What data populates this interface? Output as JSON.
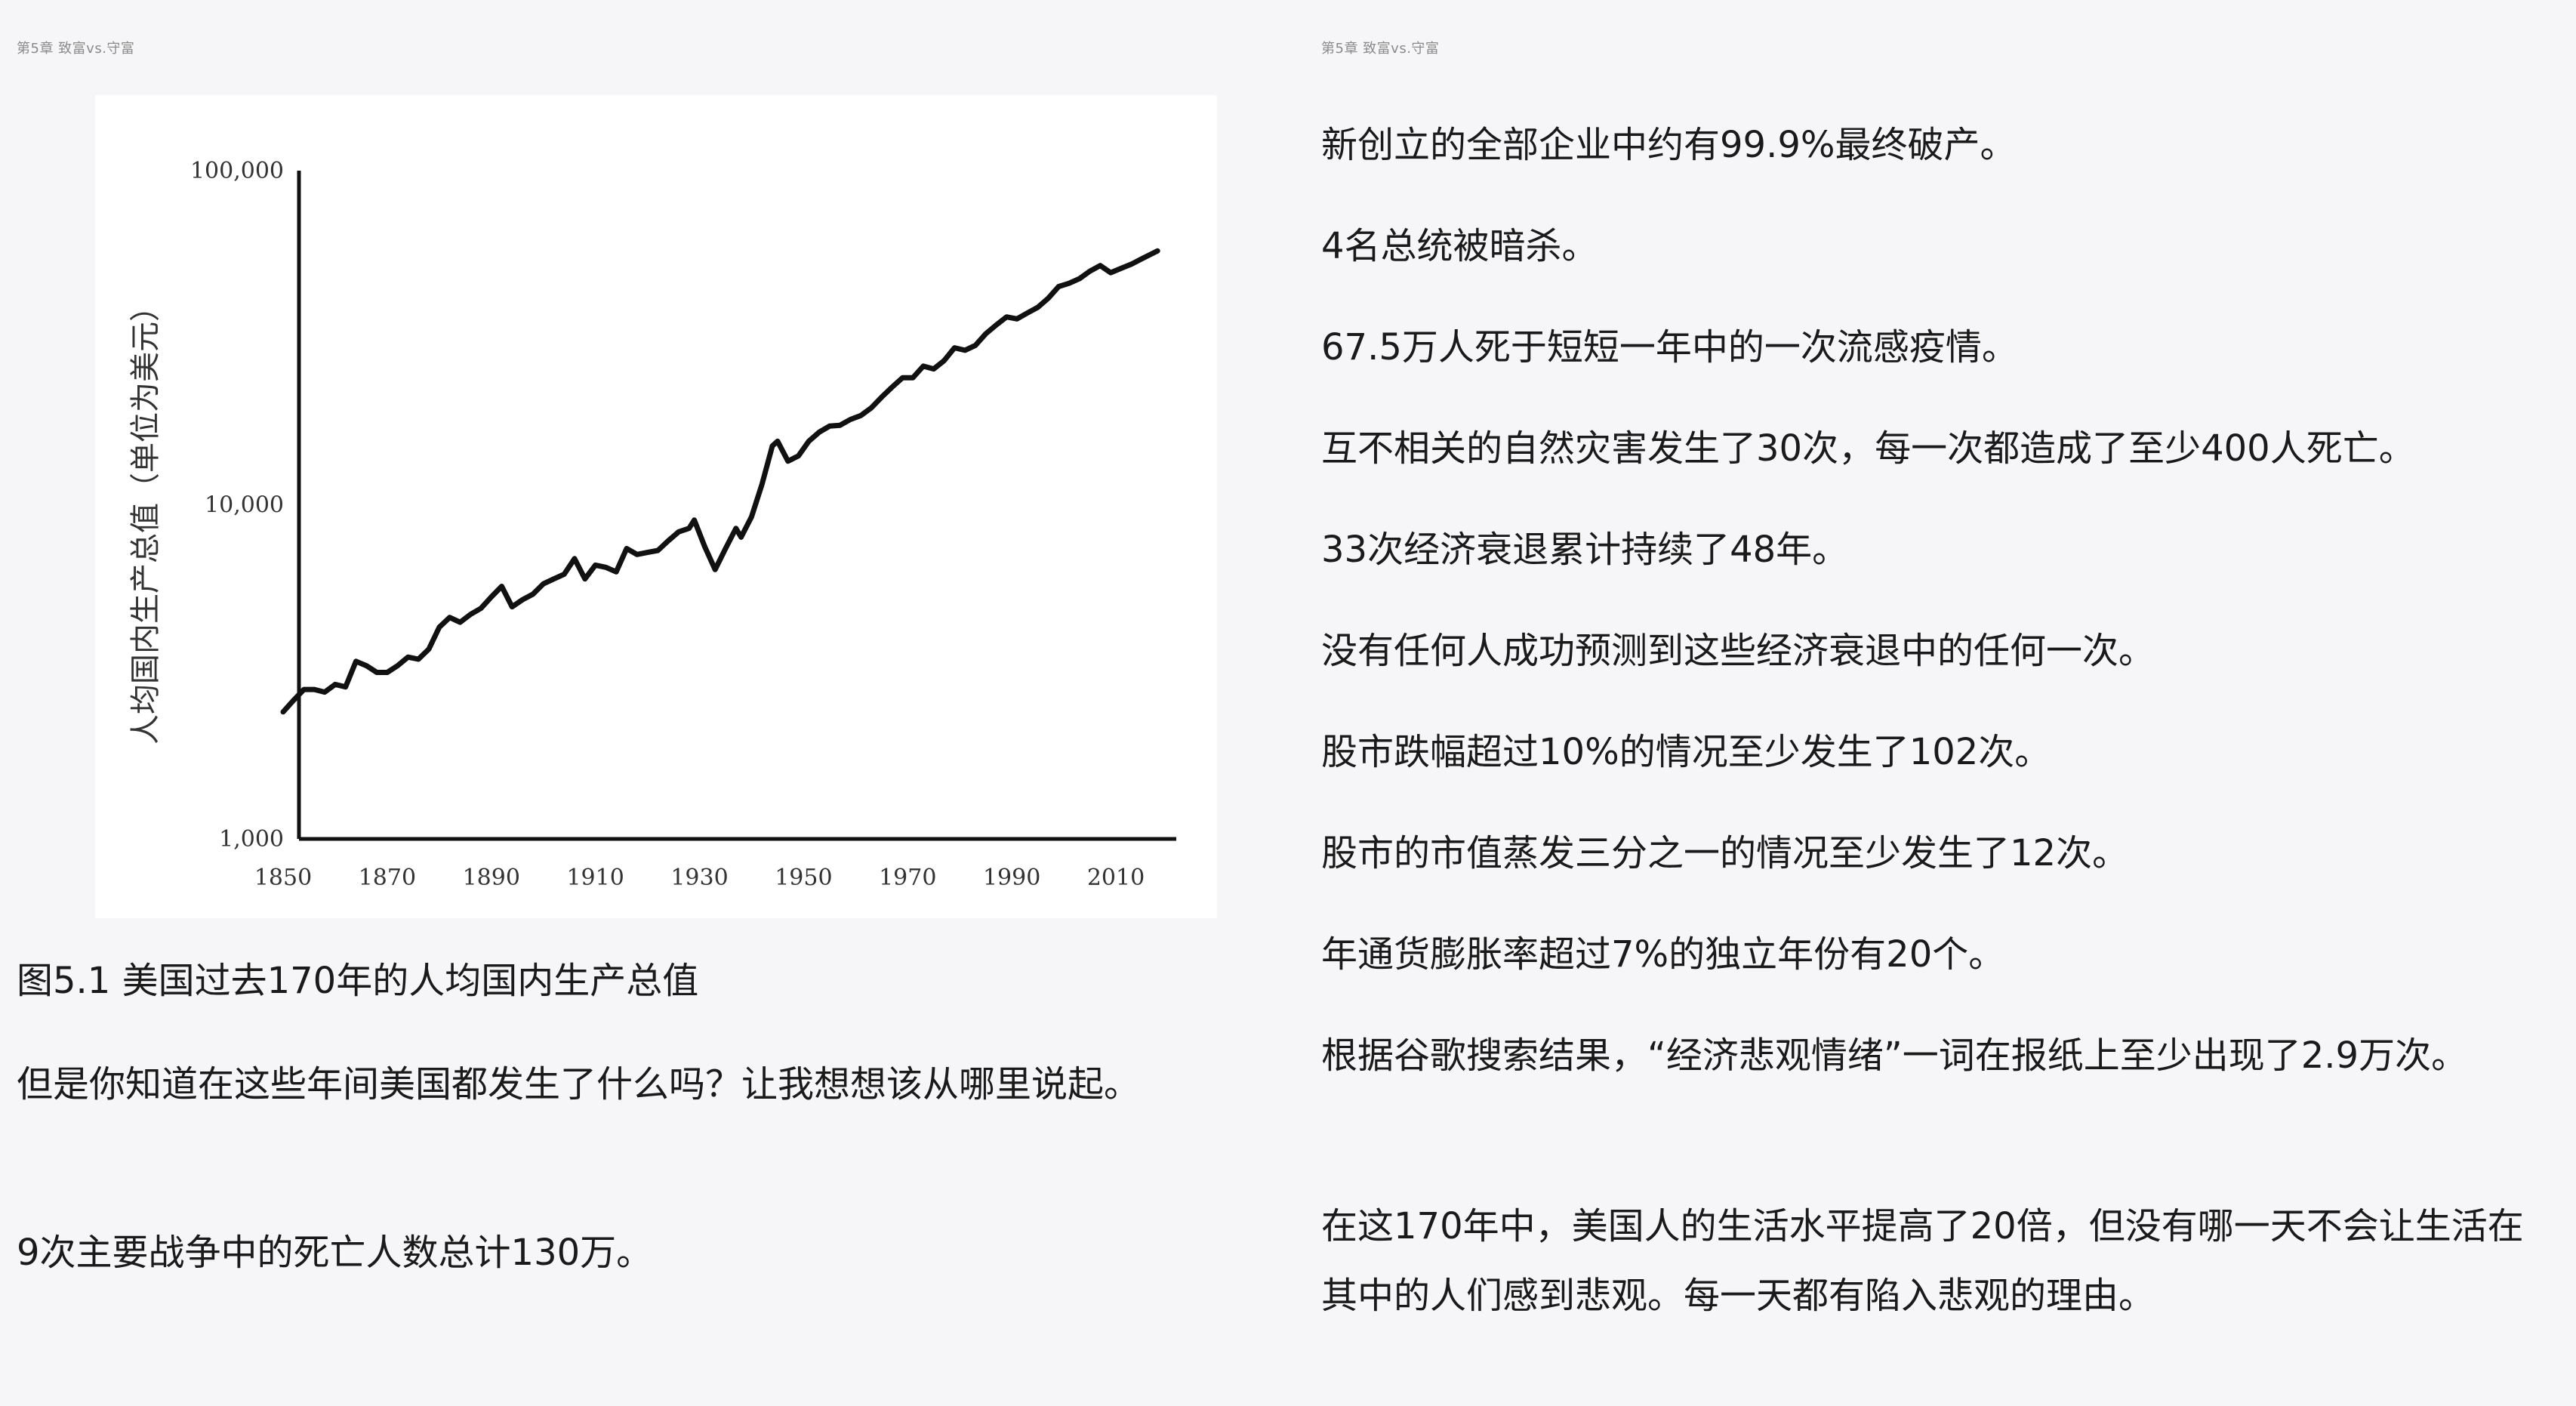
{
  "left_page": {
    "running_head": "第5章 致富vs.守富",
    "figure_caption": "图5.1 美国过去170年的人均国内生产总值",
    "paragraphs": [
      "但是你知道在这些年间美国都发生了什么吗？让我想想该从哪里说起。",
      "9次主要战争中的死亡人数总计130万。"
    ]
  },
  "right_page": {
    "running_head": "第5章 致富vs.守富",
    "paragraphs": [
      "新创立的全部企业中约有99.9%最终破产。",
      "4名总统被暗杀。",
      "67.5万人死于短短一年中的一次流感疫情。",
      "互不相关的自然灾害发生了30次，每一次都造成了至少400人死亡。",
      "33次经济衰退累计持续了48年。",
      "没有任何人成功预测到这些经济衰退中的任何一次。",
      "股市跌幅超过10%的情况至少发生了102次。",
      "股市的市值蒸发三分之一的情况至少发生了12次。",
      "年通货膨胀率超过7%的独立年份有20个。",
      "根据谷歌搜索结果，“经济悲观情绪”一词在报纸上至少出现了2.9万次。",
      "在这170年中，美国人的生活水平提高了20倍，但没有哪一天不会让生活在其中的人们感到悲观。每一天都有陷入悲观的理由。"
    ]
  },
  "chart_data": {
    "type": "line",
    "title": "",
    "xlabel": "",
    "ylabel": "人均国内生产总值（单位为美元）",
    "y_scale": "log",
    "ylim": [
      1000,
      100000
    ],
    "xlim": [
      1850,
      2018
    ],
    "x_ticks": [
      1850,
      1870,
      1890,
      1910,
      1930,
      1950,
      1970,
      1990,
      2010
    ],
    "x_tick_labels": [
      "1850",
      "1870",
      "1890",
      "1910",
      "1930",
      "1950",
      "1970",
      "1990",
      "2010"
    ],
    "y_ticks": [
      1000,
      10000,
      100000
    ],
    "y_tick_labels": [
      "1,000",
      "10,000",
      "100,000"
    ],
    "grid": false,
    "legend": "none",
    "series": [
      {
        "name": "",
        "color": "#111111",
        "points": [
          [
            1850,
            2400
          ],
          [
            1852,
            2600
          ],
          [
            1854,
            2800
          ],
          [
            1856,
            2800
          ],
          [
            1858,
            2750
          ],
          [
            1860,
            2900
          ],
          [
            1862,
            2850
          ],
          [
            1864,
            3400
          ],
          [
            1866,
            3300
          ],
          [
            1868,
            3150
          ],
          [
            1870,
            3150
          ],
          [
            1872,
            3300
          ],
          [
            1874,
            3500
          ],
          [
            1876,
            3450
          ],
          [
            1878,
            3700
          ],
          [
            1880,
            4300
          ],
          [
            1882,
            4600
          ],
          [
            1884,
            4450
          ],
          [
            1886,
            4700
          ],
          [
            1888,
            4900
          ],
          [
            1890,
            5300
          ],
          [
            1892,
            5700
          ],
          [
            1894,
            4950
          ],
          [
            1896,
            5200
          ],
          [
            1898,
            5400
          ],
          [
            1900,
            5800
          ],
          [
            1902,
            6000
          ],
          [
            1904,
            6200
          ],
          [
            1906,
            6900
          ],
          [
            1908,
            6000
          ],
          [
            1910,
            6600
          ],
          [
            1912,
            6500
          ],
          [
            1914,
            6300
          ],
          [
            1916,
            7400
          ],
          [
            1918,
            7100
          ],
          [
            1920,
            7200
          ],
          [
            1922,
            7300
          ],
          [
            1924,
            7800
          ],
          [
            1926,
            8300
          ],
          [
            1928,
            8500
          ],
          [
            1929,
            9000
          ],
          [
            1931,
            7500
          ],
          [
            1933,
            6400
          ],
          [
            1935,
            7400
          ],
          [
            1937,
            8500
          ],
          [
            1938,
            8000
          ],
          [
            1940,
            9200
          ],
          [
            1942,
            11500
          ],
          [
            1944,
            15000
          ],
          [
            1945,
            15500
          ],
          [
            1947,
            13500
          ],
          [
            1949,
            14000
          ],
          [
            1951,
            15500
          ],
          [
            1953,
            16500
          ],
          [
            1955,
            17200
          ],
          [
            1957,
            17300
          ],
          [
            1959,
            18000
          ],
          [
            1961,
            18500
          ],
          [
            1963,
            19500
          ],
          [
            1965,
            21000
          ],
          [
            1967,
            22500
          ],
          [
            1969,
            24000
          ],
          [
            1971,
            24000
          ],
          [
            1973,
            26000
          ],
          [
            1975,
            25500
          ],
          [
            1977,
            27000
          ],
          [
            1979,
            29500
          ],
          [
            1981,
            29000
          ],
          [
            1983,
            30000
          ],
          [
            1985,
            32500
          ],
          [
            1987,
            34500
          ],
          [
            1989,
            36500
          ],
          [
            1991,
            36000
          ],
          [
            1993,
            37500
          ],
          [
            1995,
            39000
          ],
          [
            1997,
            41500
          ],
          [
            1999,
            45000
          ],
          [
            2001,
            46000
          ],
          [
            2003,
            47500
          ],
          [
            2005,
            50000
          ],
          [
            2007,
            52000
          ],
          [
            2009,
            49500
          ],
          [
            2011,
            51000
          ],
          [
            2013,
            52500
          ],
          [
            2015,
            54500
          ],
          [
            2018,
            57500
          ]
        ]
      }
    ]
  }
}
